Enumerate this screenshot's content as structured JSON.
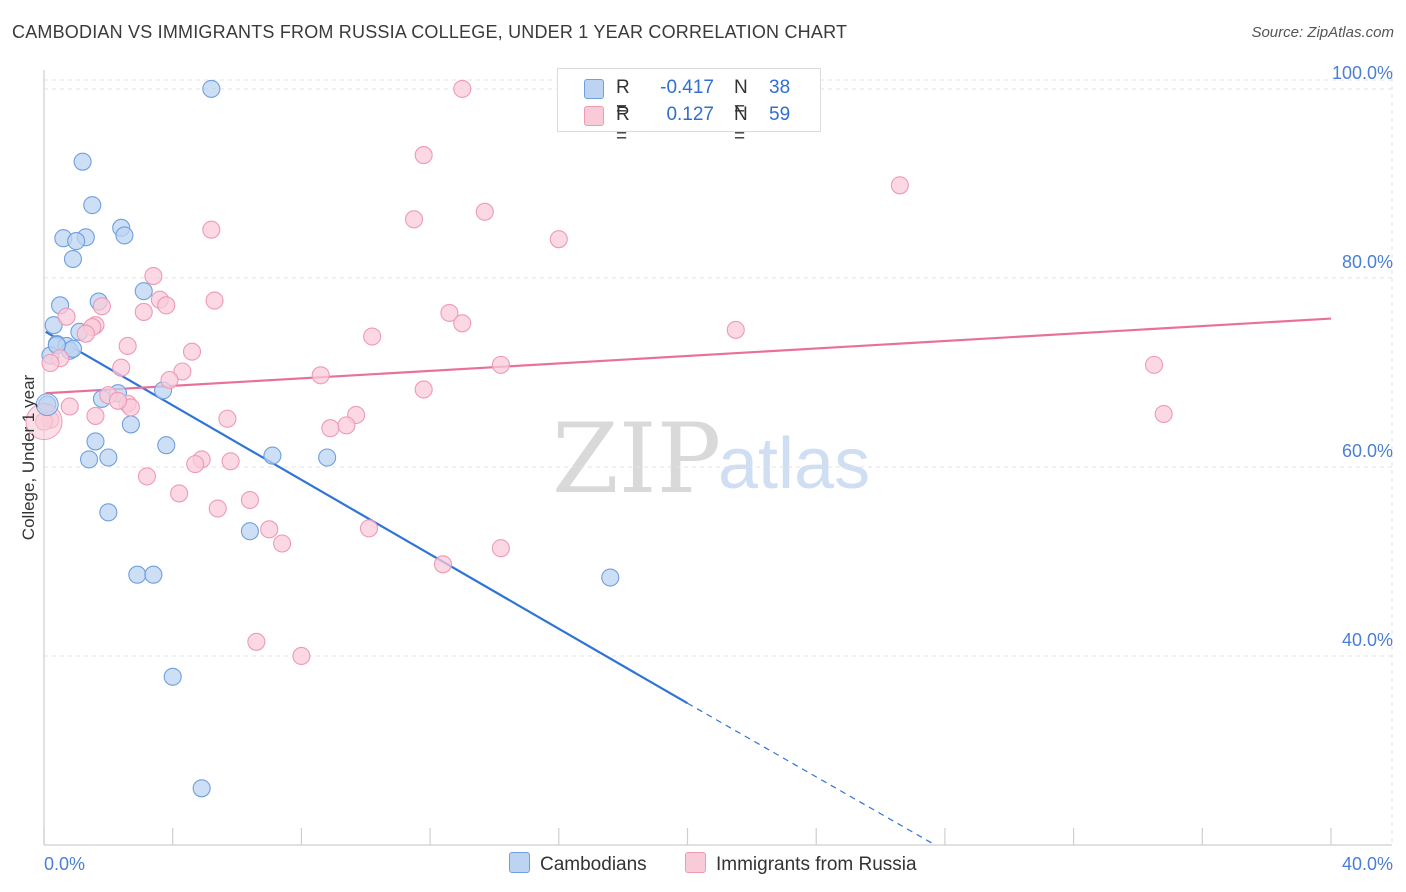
{
  "title": "CAMBODIAN VS IMMIGRANTS FROM RUSSIA COLLEGE, UNDER 1 YEAR CORRELATION CHART",
  "source": "Source: ZipAtlas.com",
  "watermark": {
    "zip": "ZIP",
    "atlas": "atlas"
  },
  "legend": {
    "r_label": "R =",
    "n_label": "N =",
    "series": [
      {
        "r": "-0.417",
        "n": "38"
      },
      {
        "r": "0.127",
        "n": "59"
      }
    ]
  },
  "colors": {
    "cambodians_fill": "#bcd4f2",
    "cambodians_stroke": "#6f9fe0",
    "cambodians_line": "#2f74d6",
    "russia_fill": "#f9cbd9",
    "russia_stroke": "#ee9ab5",
    "russia_line": "#e8719b",
    "tick_text": "#4a7fd4"
  },
  "chart_data": {
    "type": "scatter",
    "title": "CAMBODIAN VS IMMIGRANTS FROM RUSSIA COLLEGE, UNDER 1 YEAR CORRELATION CHART",
    "xlabel": "",
    "ylabel": "College, Under 1 year",
    "xlim": [
      0,
      40
    ],
    "ylim": [
      20,
      102
    ],
    "x_tick_labels": [
      "0.0%",
      "40.0%"
    ],
    "y_ticks": [
      40,
      60,
      80,
      100
    ],
    "y_tick_labels": [
      "40.0%",
      "60.0%",
      "80.0%",
      "100.0%"
    ],
    "grid": true,
    "legend_position": "top-center",
    "series": [
      {
        "name": "Cambodians",
        "points": [
          [
            5.2,
            100.0
          ],
          [
            1.2,
            92.3
          ],
          [
            1.5,
            87.7
          ],
          [
            0.6,
            84.2
          ],
          [
            1.3,
            84.3
          ],
          [
            1.0,
            83.9
          ],
          [
            2.4,
            85.3
          ],
          [
            2.5,
            84.5
          ],
          [
            0.9,
            82.0
          ],
          [
            0.5,
            77.1
          ],
          [
            1.7,
            77.5
          ],
          [
            3.1,
            78.6
          ],
          [
            0.3,
            75.0
          ],
          [
            1.1,
            74.3
          ],
          [
            0.4,
            73.0
          ],
          [
            0.7,
            72.8
          ],
          [
            0.8,
            72.3
          ],
          [
            0.9,
            72.5
          ],
          [
            0.2,
            71.8
          ],
          [
            3.7,
            68.1
          ],
          [
            2.3,
            67.8
          ],
          [
            1.8,
            67.2
          ],
          [
            0.1,
            66.6
          ],
          [
            2.7,
            64.5
          ],
          [
            1.6,
            62.7
          ],
          [
            3.8,
            62.3
          ],
          [
            2.0,
            61.0
          ],
          [
            1.4,
            60.8
          ],
          [
            7.1,
            61.2
          ],
          [
            8.8,
            61.0
          ],
          [
            2.0,
            55.2
          ],
          [
            6.4,
            53.2
          ],
          [
            2.9,
            48.6
          ],
          [
            3.4,
            48.6
          ],
          [
            17.6,
            48.3
          ],
          [
            4.0,
            37.8
          ],
          [
            4.9,
            26.0
          ],
          [
            0.4,
            72.9
          ]
        ],
        "trend": {
          "x_start": 0.05,
          "y_start": 74.3,
          "x_solid_end": 20.0,
          "y_solid_end": 35.0,
          "x_end": 27.7,
          "y_end": 20.0
        }
      },
      {
        "name": "Immigrants from Russia",
        "points": [
          [
            13.0,
            100.0
          ],
          [
            11.8,
            93.0
          ],
          [
            26.6,
            89.8
          ],
          [
            11.5,
            86.2
          ],
          [
            13.7,
            87.0
          ],
          [
            5.2,
            85.1
          ],
          [
            16.0,
            84.1
          ],
          [
            3.4,
            80.2
          ],
          [
            5.3,
            77.6
          ],
          [
            3.6,
            77.7
          ],
          [
            3.8,
            77.1
          ],
          [
            1.8,
            77.0
          ],
          [
            3.1,
            76.4
          ],
          [
            12.6,
            76.3
          ],
          [
            0.7,
            75.9
          ],
          [
            13.0,
            75.2
          ],
          [
            1.6,
            75.0
          ],
          [
            1.5,
            74.8
          ],
          [
            21.5,
            74.5
          ],
          [
            1.3,
            74.1
          ],
          [
            10.2,
            73.8
          ],
          [
            2.6,
            72.8
          ],
          [
            4.6,
            72.2
          ],
          [
            0.5,
            71.5
          ],
          [
            0.2,
            71.0
          ],
          [
            14.2,
            70.8
          ],
          [
            34.5,
            70.8
          ],
          [
            2.4,
            70.5
          ],
          [
            4.3,
            70.1
          ],
          [
            8.6,
            69.7
          ],
          [
            3.9,
            69.2
          ],
          [
            11.8,
            68.2
          ],
          [
            2.0,
            67.6
          ],
          [
            2.6,
            66.7
          ],
          [
            2.7,
            66.3
          ],
          [
            0.8,
            66.4
          ],
          [
            1.6,
            65.4
          ],
          [
            5.7,
            65.1
          ],
          [
            9.7,
            65.5
          ],
          [
            34.8,
            65.6
          ],
          [
            0.2,
            65.0
          ],
          [
            9.4,
            64.4
          ],
          [
            8.9,
            64.1
          ],
          [
            4.9,
            60.8
          ],
          [
            4.7,
            60.3
          ],
          [
            5.8,
            60.6
          ],
          [
            3.2,
            59.0
          ],
          [
            4.2,
            57.2
          ],
          [
            6.4,
            56.5
          ],
          [
            5.4,
            55.6
          ],
          [
            7.0,
            53.4
          ],
          [
            10.1,
            53.5
          ],
          [
            7.4,
            51.9
          ],
          [
            14.2,
            51.4
          ],
          [
            12.4,
            49.7
          ],
          [
            6.6,
            41.5
          ],
          [
            8.0,
            40.0
          ],
          [
            0.0,
            64.8
          ],
          [
            2.3,
            67.0
          ]
        ],
        "trend": {
          "x_start": 0.05,
          "y_start": 67.8,
          "x_end": 40.0,
          "y_end": 75.7
        }
      }
    ]
  },
  "bottom_legend": [
    "Cambodians",
    "Immigrants from Russia"
  ]
}
